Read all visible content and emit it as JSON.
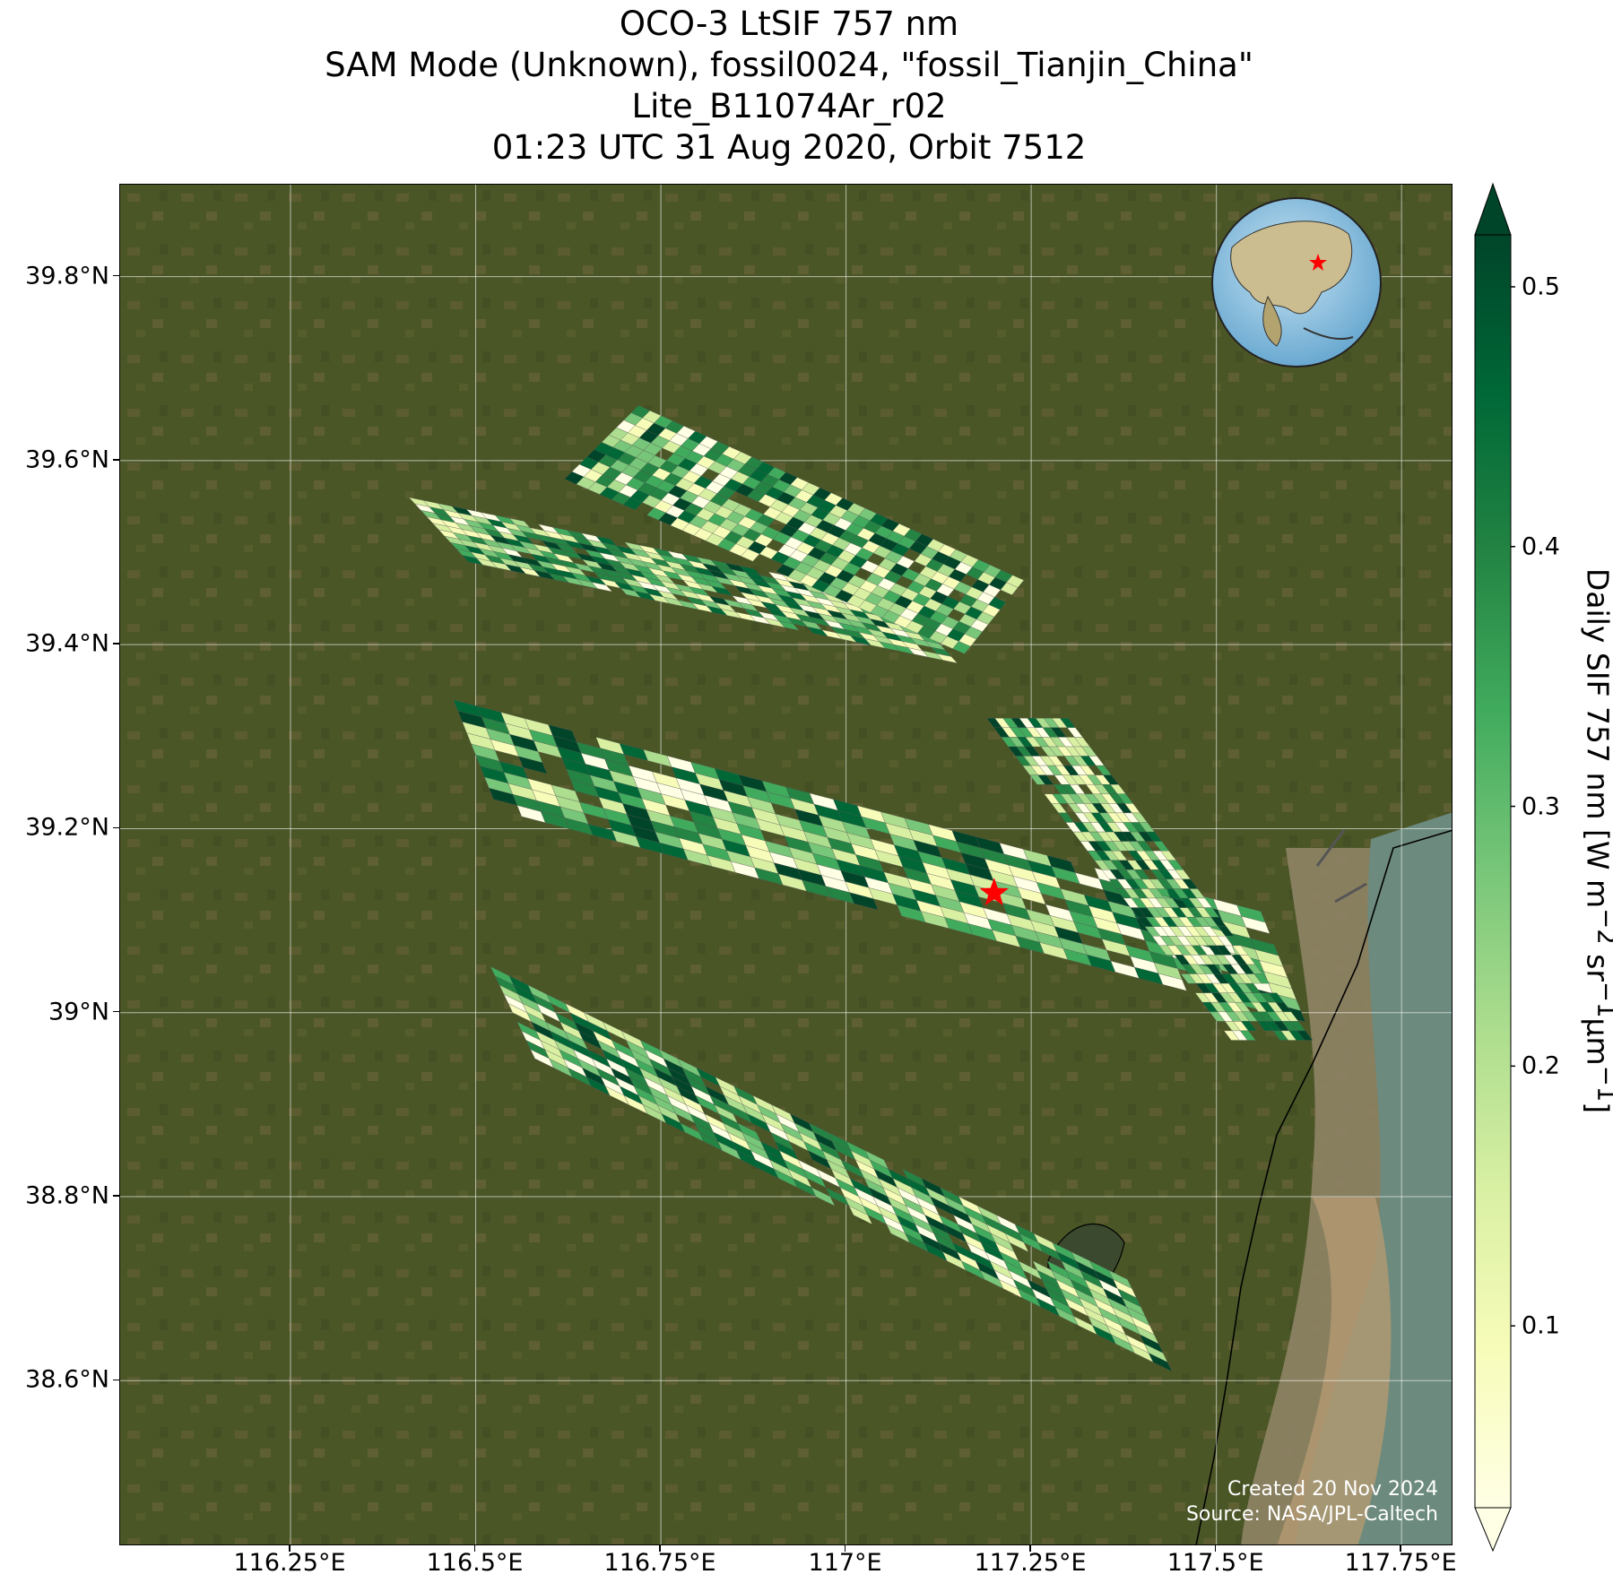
{
  "title": {
    "line1": "OCO-3 LtSIF 757 nm",
    "line2": "SAM Mode (Unknown), fossil0024, \"fossil_Tianjin_China\"",
    "line3": "Lite_B11074Ar_r02",
    "line4": "01:23 UTC 31 Aug 2020, Orbit 7512"
  },
  "map": {
    "lon_range": [
      116.02,
      117.82
    ],
    "lat_range": [
      38.42,
      39.9
    ],
    "lat_ticks": [
      "39.8°N",
      "39.6°N",
      "39.4°N",
      "39.2°N",
      "39°N",
      "38.8°N",
      "38.6°N"
    ],
    "lat_values": [
      39.8,
      39.6,
      39.4,
      39.2,
      39.0,
      38.8,
      38.6
    ],
    "lon_ticks": [
      "116.25°E",
      "116.5°E",
      "116.75°E",
      "117°E",
      "117.25°E",
      "117.5°E",
      "117.75°E"
    ],
    "lon_values": [
      116.25,
      116.5,
      116.75,
      117.0,
      117.25,
      117.5,
      117.75
    ],
    "target": {
      "lon": 117.2,
      "lat": 39.13,
      "marker": "star-icon",
      "color": "#ff0000"
    },
    "basemap": "satellite imagery",
    "inset": "globe-icon"
  },
  "credits": {
    "created": "Created 20 Nov 2024",
    "source": "Source: NASA/JPL-Caltech"
  },
  "colorbar": {
    "label_main": "Daily SIF 757 nm [W m",
    "label_sup1": "−2",
    "label_mid1": " sr",
    "label_sup2": "−1",
    "label_mid2": "μm",
    "label_sup3": "−1",
    "label_end": "]",
    "ticks": [
      "0.1",
      "0.2",
      "0.3",
      "0.4",
      "0.5"
    ],
    "tick_values": [
      0.1,
      0.2,
      0.3,
      0.4,
      0.5
    ],
    "range": [
      0.03,
      0.52
    ],
    "colormap": "YlGn",
    "colors": [
      "#ffffe5",
      "#f7fcb9",
      "#d9f0a3",
      "#addd8e",
      "#78c679",
      "#41ab5d",
      "#238443",
      "#006837",
      "#004529"
    ]
  },
  "chart_data": {
    "type": "heatmap",
    "title": "OCO-3 LtSIF 757 nm",
    "xlabel": "",
    "ylabel": "",
    "zlabel": "Daily SIF 757 nm [W m−2 sr−1μm−1]",
    "zlim": [
      0.03,
      0.52
    ],
    "swaths": [
      {
        "corner_lon_lat": [
          [
            116.41,
            39.56
          ],
          [
            116.49,
            39.49
          ],
          [
            117.15,
            39.38
          ],
          [
            117.07,
            39.45
          ]
        ]
      },
      {
        "corner_lon_lat": [
          [
            116.72,
            39.66
          ],
          [
            116.62,
            39.58
          ],
          [
            117.16,
            39.39
          ],
          [
            117.24,
            39.47
          ]
        ]
      },
      {
        "corner_lon_lat": [
          [
            116.47,
            39.34
          ],
          [
            116.53,
            39.22
          ],
          [
            117.62,
            38.99
          ],
          [
            117.56,
            39.11
          ]
        ]
      },
      {
        "corner_lon_lat": [
          [
            117.19,
            39.32
          ],
          [
            117.3,
            39.32
          ],
          [
            117.63,
            38.97
          ],
          [
            117.52,
            38.97
          ]
        ]
      },
      {
        "corner_lon_lat": [
          [
            116.52,
            39.05
          ],
          [
            116.58,
            38.95
          ],
          [
            117.44,
            38.61
          ],
          [
            117.38,
            38.71
          ]
        ]
      }
    ]
  }
}
